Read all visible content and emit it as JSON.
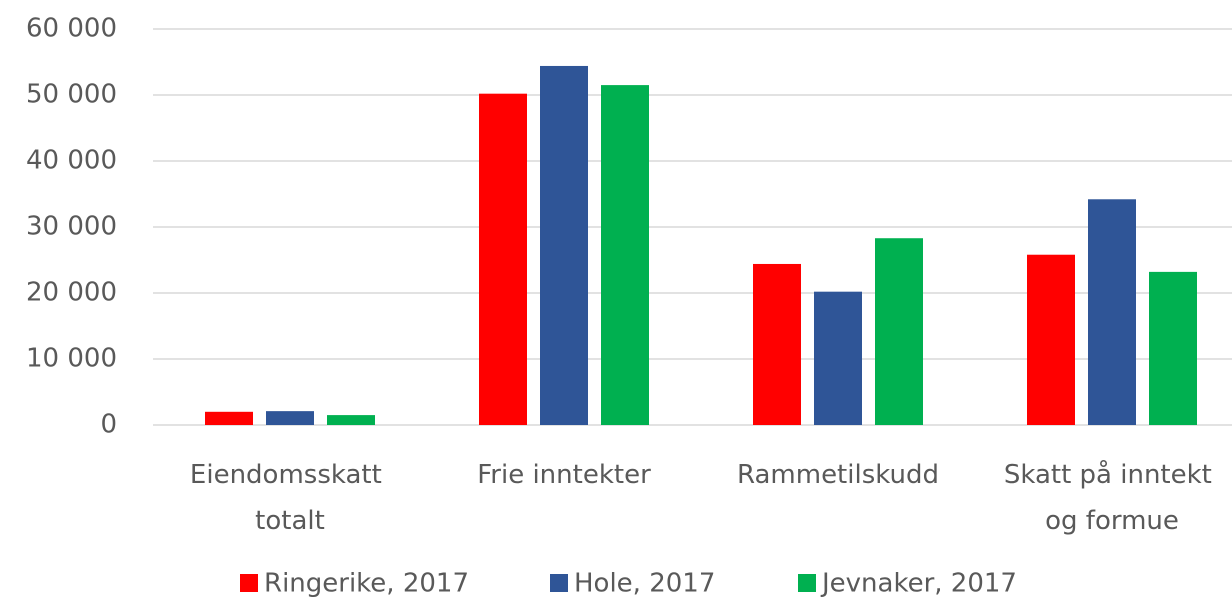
{
  "chart_data": {
    "type": "bar",
    "categories": [
      "Eiendomsskatt totalt",
      "Frie inntekter",
      "Rammetilskudd",
      "Skatt på inntekt og formue"
    ],
    "series": [
      {
        "name": "Ringerike, 2017",
        "color": "#ff0000",
        "values": [
          2000,
          50200,
          24400,
          25800
        ]
      },
      {
        "name": "Hole, 2017",
        "color": "#2f5597",
        "values": [
          2100,
          54400,
          20200,
          34200
        ]
      },
      {
        "name": "Jevnaker, 2017",
        "color": "#00b050",
        "values": [
          1500,
          51500,
          28300,
          23200
        ]
      }
    ],
    "ylim": [
      0,
      60000
    ],
    "yticks": [
      0,
      {
        "value": 10000,
        "label": "10 000"
      },
      {
        "value": 20000,
        "label": "20 000"
      },
      {
        "value": 30000,
        "label": "30 000"
      },
      {
        "value": 40000,
        "label": "40 000"
      },
      {
        "value": 50000,
        "label": "50 000"
      },
      {
        "value": 60000,
        "label": "60 000"
      }
    ],
    "grid": true,
    "legend": "bottom"
  }
}
